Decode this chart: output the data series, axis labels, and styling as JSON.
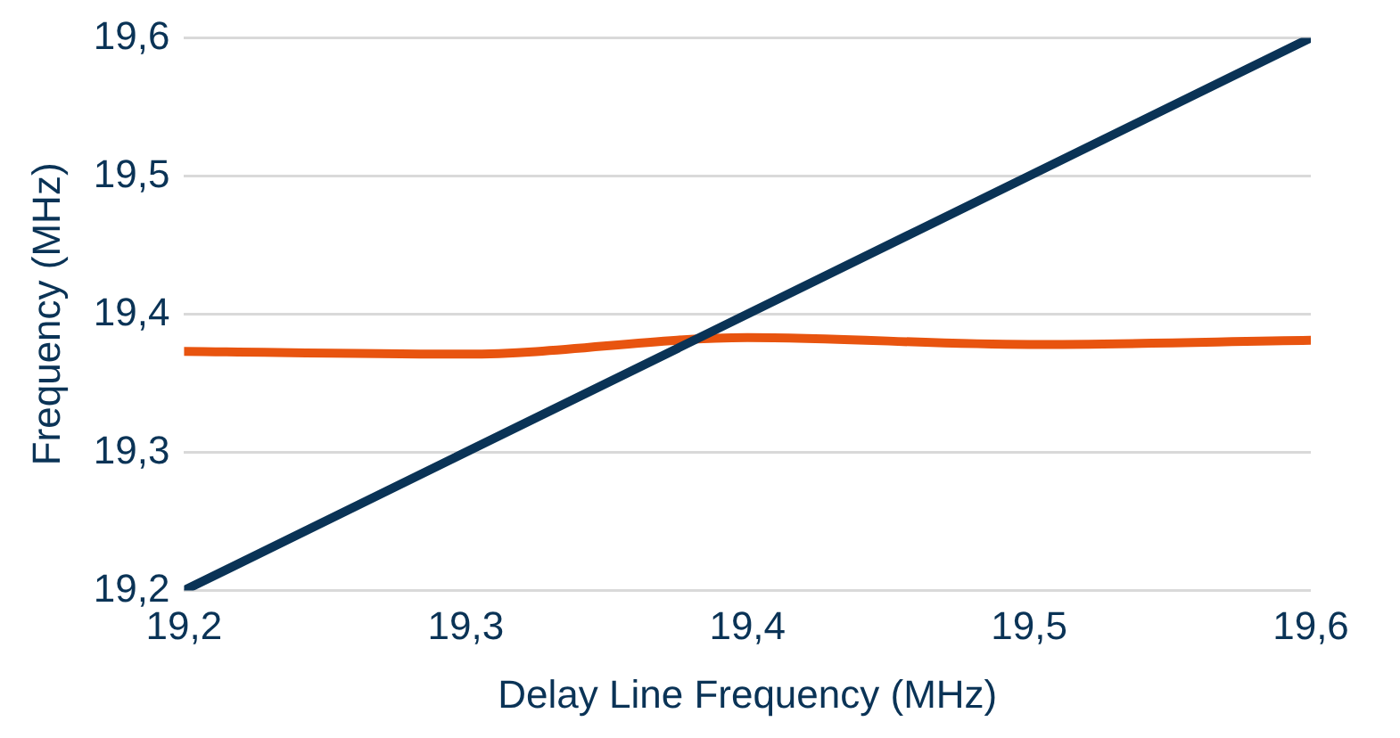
{
  "chart_data": {
    "type": "line",
    "xlabel": "Delay Line Frequency (MHz)",
    "ylabel": "Frequency (MHz)",
    "series": [
      {
        "color": "#0a3356",
        "x": [
          19.2,
          19.6
        ],
        "values": [
          19.2,
          19.6
        ]
      },
      {
        "color": "#e8540f",
        "x": [
          19.2,
          19.3,
          19.4,
          19.5,
          19.6
        ],
        "values": [
          19.373,
          19.371,
          19.383,
          19.378,
          19.381
        ]
      }
    ],
    "xlim": [
      19.2,
      19.6
    ],
    "xticks": [
      {
        "value": 19.2,
        "label": "19,2"
      },
      {
        "value": 19.3,
        "label": "19,3"
      },
      {
        "value": 19.4,
        "label": "19,4"
      },
      {
        "value": 19.5,
        "label": "19,5"
      },
      {
        "value": 19.6,
        "label": "19,6"
      }
    ],
    "ylim": [
      19.2,
      19.6
    ],
    "yticks": [
      {
        "value": 19.2,
        "label": "19,2"
      },
      {
        "value": 19.3,
        "label": "19,3"
      },
      {
        "value": 19.4,
        "label": "19,4"
      },
      {
        "value": 19.5,
        "label": "19,5"
      },
      {
        "value": 19.6,
        "label": "19,6"
      }
    ],
    "grid": "y",
    "legend": false,
    "marker": "none",
    "line_style": "solid"
  }
}
